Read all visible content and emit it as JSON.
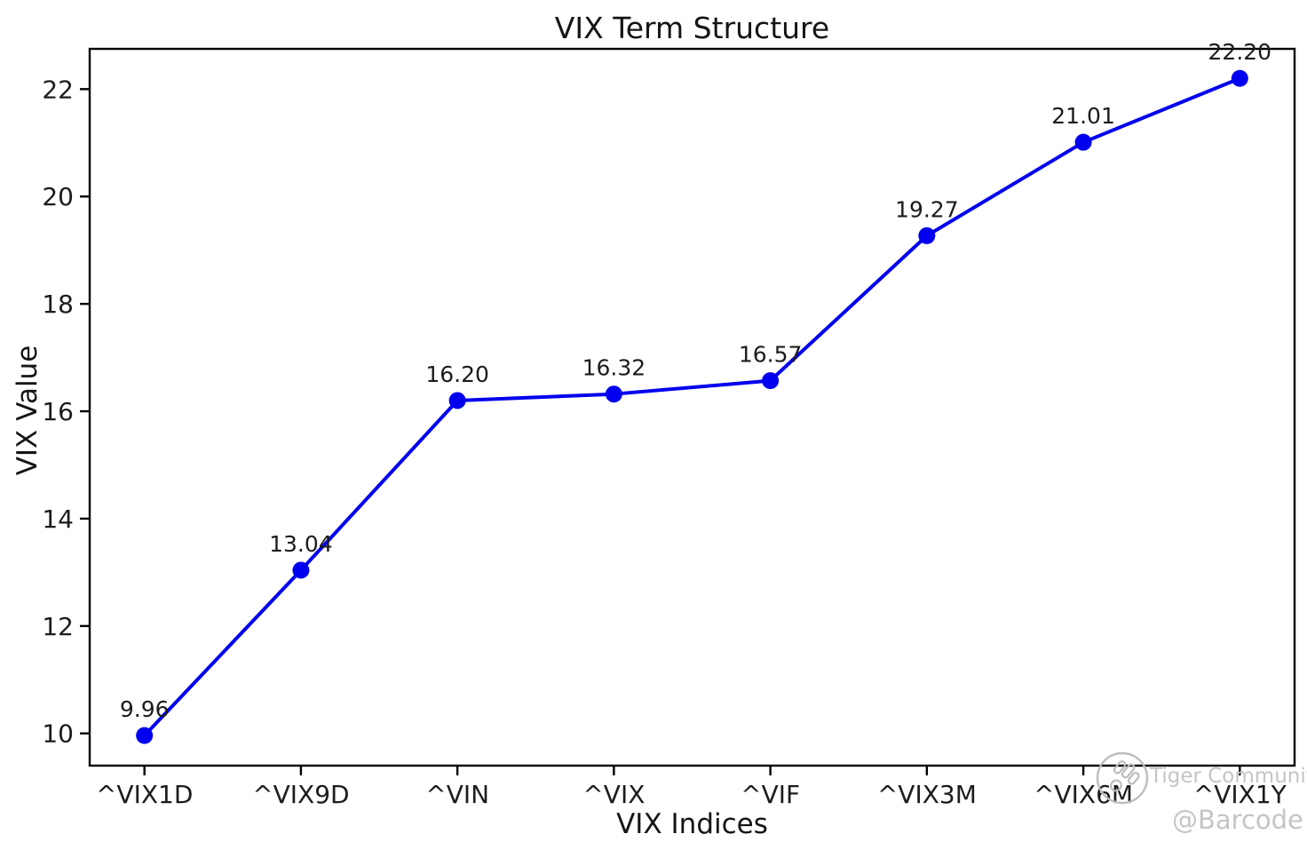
{
  "chart_data": {
    "type": "line",
    "title": "VIX Term Structure",
    "xlabel": "VIX Indices",
    "ylabel": "VIX Value",
    "categories": [
      "^VIX1D",
      "^VIX9D",
      "^VIN",
      "^VIX",
      "^VIF",
      "^VIX3M",
      "^VIX6M",
      "^VIX1Y"
    ],
    "values": [
      9.96,
      13.04,
      16.2,
      16.32,
      16.57,
      19.27,
      21.01,
      22.2
    ],
    "point_labels": [
      "9.96",
      "13.04",
      "16.20",
      "16.32",
      "16.57",
      "19.27",
      "21.01",
      "22.20"
    ],
    "yticks": [
      10,
      12,
      14,
      16,
      18,
      20,
      22
    ],
    "ylim": [
      9.4,
      22.75
    ],
    "x_margin": 0.35,
    "grid": false,
    "legend": false,
    "line_color": "#0000ee",
    "marker_color": "#0000ee",
    "axis_color": "#000000",
    "text_color": "#1c1c1c"
  },
  "watermark": {
    "logo_icon": "tiger-community-logo",
    "brand": "Tiger Community",
    "handle": "@Barcode",
    "color": "#c5c5c5"
  }
}
